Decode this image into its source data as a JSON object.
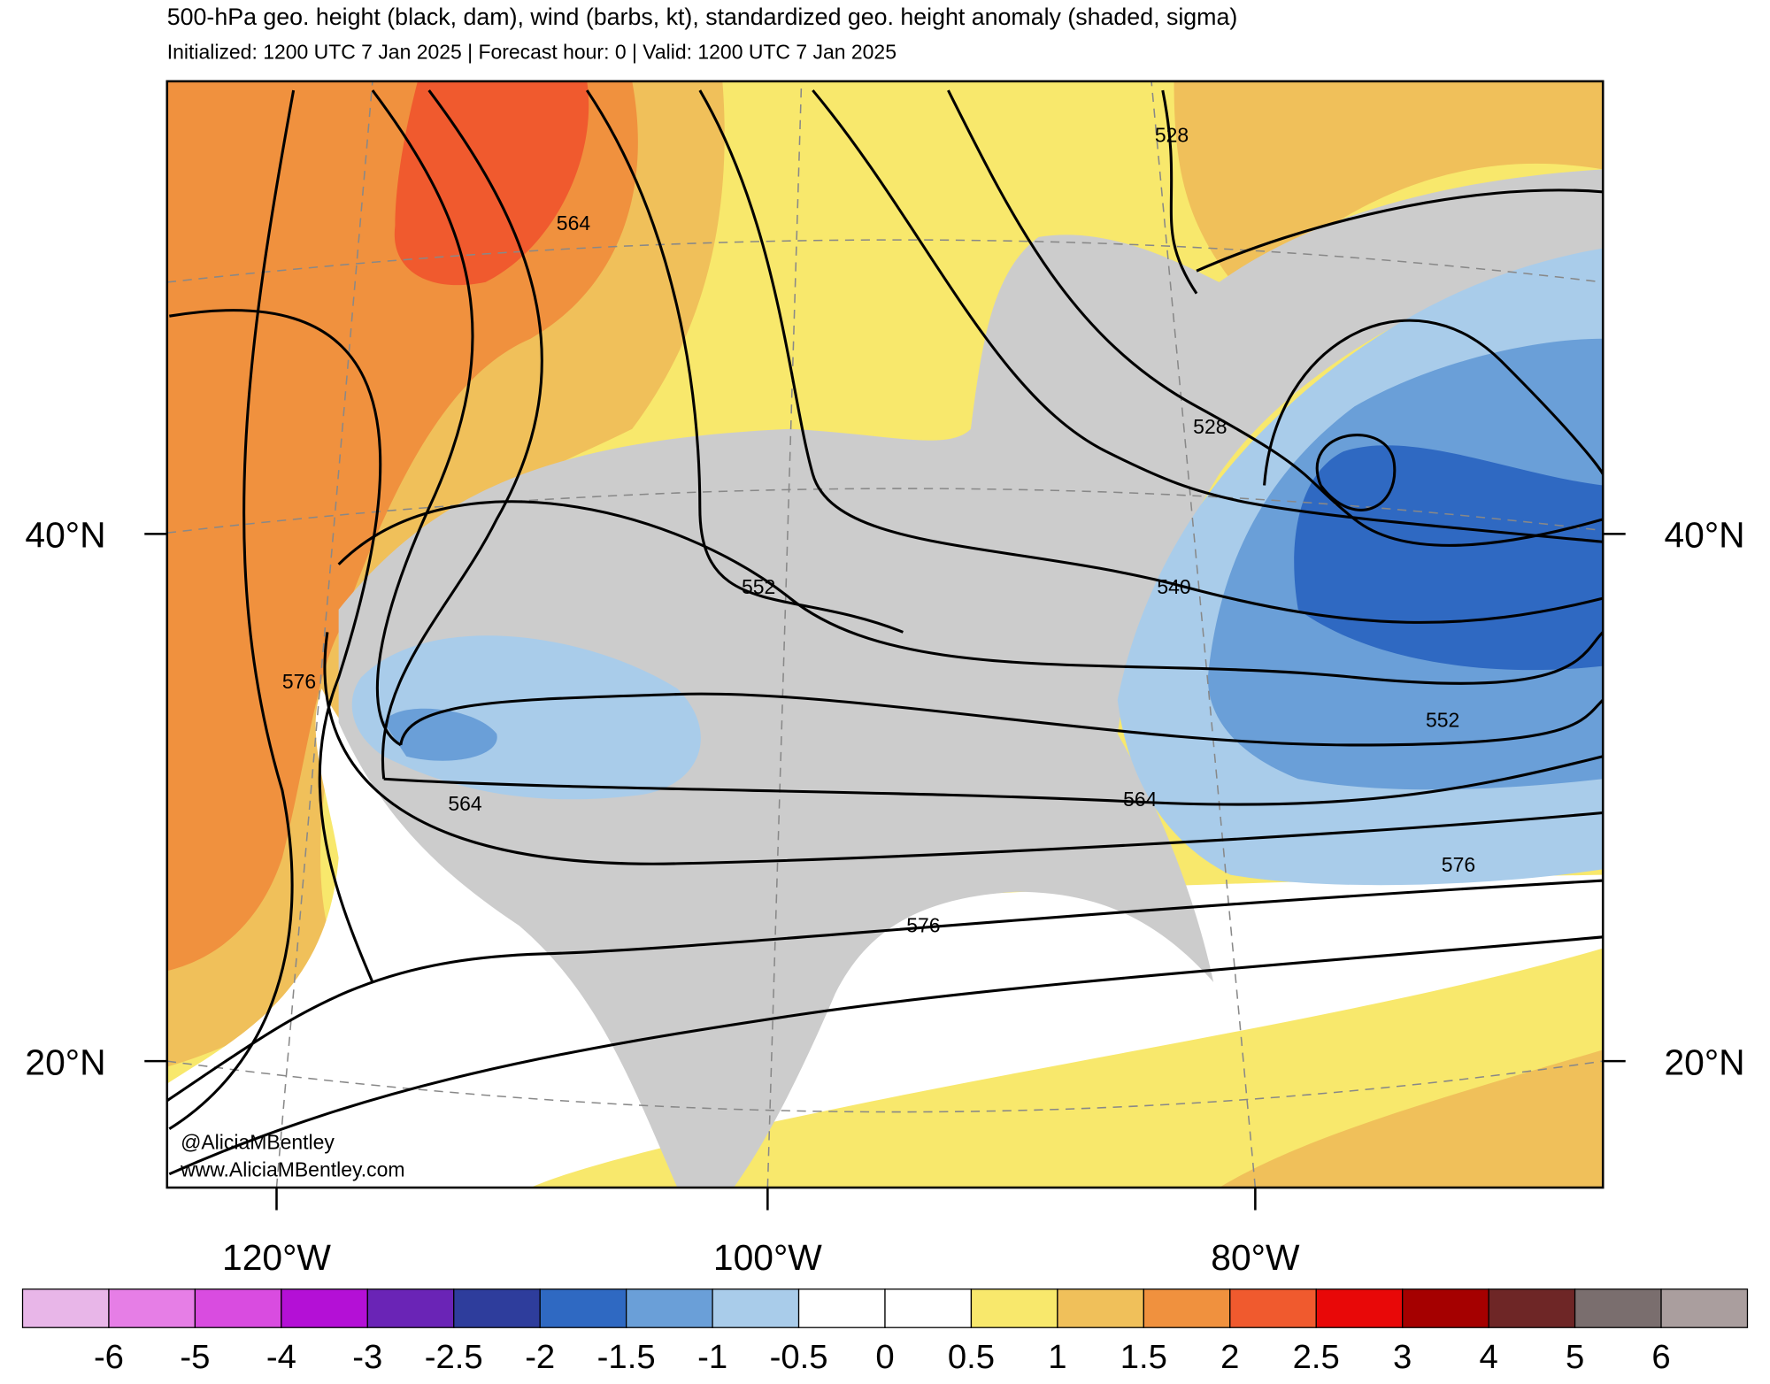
{
  "header": {
    "title": "500-hPa geo. height (black, dam), wind (barbs, kt), standardized geo. height anomaly (shaded, sigma)",
    "subtitle": "Initialized: 1200 UTC 7 Jan 2025 | Forecast hour: 0 | Valid: 1200 UTC 7 Jan 2025"
  },
  "map": {
    "lat_labels": [
      "40°N",
      "20°N"
    ],
    "lon_labels": [
      "120°W",
      "100°W",
      "80°W"
    ],
    "contour_labels": [
      564,
      528,
      528,
      552,
      540,
      576,
      552,
      564,
      564,
      576,
      576
    ],
    "credits": [
      "@AliciaMBentley",
      "www.AliciaMBentley.com"
    ]
  },
  "colorbar": {
    "labels": [
      -6,
      -5,
      -4,
      -3,
      -2.5,
      -2,
      -1.5,
      -1,
      -0.5,
      0,
      0.5,
      1,
      1.5,
      2,
      2.5,
      3,
      4,
      5,
      6
    ],
    "colors": [
      "#e8b6e8",
      "#e67ee6",
      "#d94ce0",
      "#b410d6",
      "#6a24b6",
      "#2e3d9c",
      "#2f69c2",
      "#6a9fd8",
      "#a9ccea",
      "#ffffff",
      "#ffffff",
      "#f8e86c",
      "#f0c05a",
      "#f0913e",
      "#f05a2e",
      "#e80808",
      "#a50000",
      "#6e2626",
      "#7a6e6e",
      "#aa9e9e"
    ]
  }
}
